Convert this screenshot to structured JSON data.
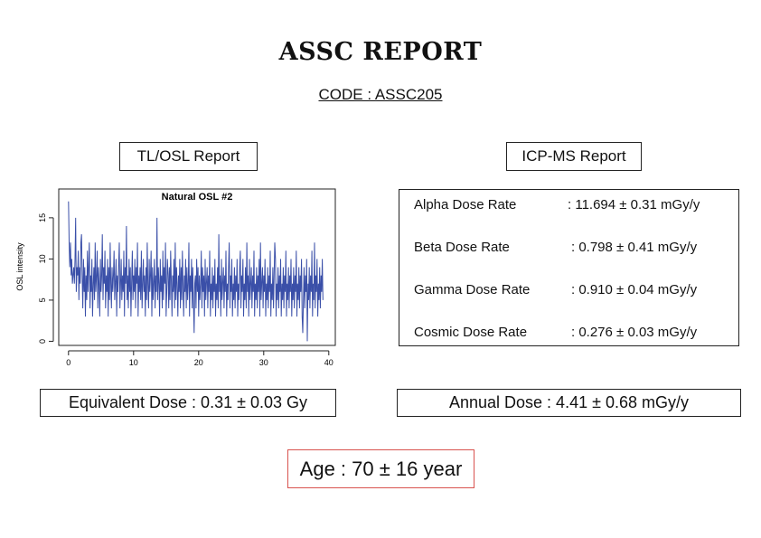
{
  "report": {
    "title": "ASSC REPORT",
    "code": "CODE : ASSC205"
  },
  "tl_osl": {
    "label": "TL/OSL Report",
    "equivalent_dose": "Equivalent Dose : 0.31 ± 0.03 Gy"
  },
  "icp_ms": {
    "label": "ICP-MS Report",
    "rows": [
      {
        "label": "Alpha Dose Rate",
        "value": ": 11.694 ± 0.31 mGy/y"
      },
      {
        "label": "Beta Dose Rate",
        "value": ": 0.798 ± 0.41 mGy/y"
      },
      {
        "label": "Gamma Dose Rate",
        "value": ": 0.910 ± 0.04 mGy/y"
      },
      {
        "label": "Cosmic Dose Rate",
        "value": ": 0.276 ± 0.03 mGy/y"
      }
    ],
    "annual_dose": "Annual Dose : 4.41 ± 0.68 mGy/y"
  },
  "age": "Age : 70 ± 16 year",
  "chart_data": {
    "type": "line",
    "title": "Natural OSL #2",
    "xlabel": "",
    "ylabel": "OSL intensity",
    "xlim": [
      -1.5,
      41
    ],
    "ylim": [
      -0.5,
      18.5
    ],
    "x_ticks": [
      0,
      10,
      20,
      30,
      40
    ],
    "y_ticks": [
      0,
      5,
      10,
      15
    ],
    "grid": false,
    "color": "#3a4fa8",
    "x_step": 0.1,
    "values": [
      17,
      12,
      9,
      12,
      8,
      10,
      7,
      8,
      9,
      7,
      10,
      15,
      6,
      9,
      8,
      11,
      5,
      9,
      7,
      12,
      13,
      8,
      4,
      10,
      6,
      9,
      3,
      8,
      5,
      11,
      6,
      9,
      12,
      4,
      8,
      6,
      10,
      3,
      7,
      9,
      5,
      12,
      6,
      8,
      11,
      4,
      9,
      7,
      3,
      10,
      6,
      8,
      13,
      5,
      9,
      7,
      11,
      4,
      8,
      6,
      10,
      3,
      9,
      5,
      12,
      7,
      4,
      9,
      6,
      8,
      11,
      5,
      7,
      10,
      3,
      8,
      6,
      9,
      12,
      4,
      7,
      10,
      5,
      8,
      6,
      11,
      3,
      9,
      7,
      14,
      5,
      8,
      4,
      10,
      6,
      9,
      3,
      7,
      11,
      5,
      8,
      6,
      10,
      4,
      9,
      7,
      12,
      3,
      8,
      6,
      9,
      5,
      11,
      4,
      7,
      10,
      6,
      8,
      3,
      9,
      5,
      12,
      7,
      4,
      10,
      6,
      8,
      11,
      3,
      9,
      5,
      7,
      10,
      4,
      8,
      6,
      15,
      5,
      9,
      7,
      3,
      10,
      6,
      8,
      4,
      11,
      5,
      9,
      7,
      12,
      3,
      6,
      10,
      8,
      4,
      9,
      5,
      11,
      7,
      3,
      8,
      6,
      10,
      4,
      12,
      5,
      9,
      7,
      3,
      8,
      6,
      10,
      4,
      9,
      5,
      11,
      7,
      3,
      8,
      6,
      10,
      4,
      9,
      5,
      7,
      12,
      3,
      8,
      6,
      10,
      4,
      9,
      5,
      1,
      7,
      8,
      4,
      10,
      6,
      9,
      3,
      8,
      5,
      7,
      11,
      4,
      9,
      6,
      8,
      3,
      10,
      5,
      7,
      9,
      4,
      8,
      6,
      11,
      3,
      7,
      5,
      9,
      4,
      8,
      6,
      10,
      3,
      7,
      5,
      9,
      4,
      13,
      6,
      8,
      3,
      10,
      5,
      7,
      9,
      4,
      8,
      6,
      11,
      3,
      7,
      5,
      9,
      12,
      4,
      8,
      6,
      10,
      3,
      7,
      5,
      9,
      4,
      8,
      6,
      10,
      3,
      7,
      5,
      9,
      11,
      4,
      8,
      6,
      10,
      3,
      7,
      5,
      9,
      4,
      12,
      6,
      8,
      3,
      10,
      5,
      7,
      9,
      4,
      8,
      6,
      11,
      3,
      7,
      5,
      9,
      4,
      8,
      6,
      10,
      3,
      12,
      5,
      7,
      9,
      4,
      8,
      6,
      10,
      3,
      7,
      5,
      9,
      4,
      8,
      6,
      11,
      3,
      7,
      5,
      9,
      4,
      8,
      12,
      10,
      3,
      7,
      5,
      9,
      4,
      8,
      6,
      10,
      3,
      7,
      5,
      9,
      4,
      8,
      6,
      11,
      3,
      7,
      5,
      9,
      4,
      8,
      6,
      10,
      3,
      7,
      5,
      9,
      4,
      8,
      6,
      11,
      3,
      7,
      5,
      9,
      4,
      8,
      6,
      10,
      3,
      1,
      5,
      9,
      4,
      8,
      6,
      10,
      0,
      7,
      5,
      9,
      4,
      8,
      6,
      11,
      3,
      7,
      5,
      12,
      4,
      8,
      6,
      10,
      3,
      7,
      5,
      9,
      4,
      8,
      6,
      10,
      5
    ]
  }
}
